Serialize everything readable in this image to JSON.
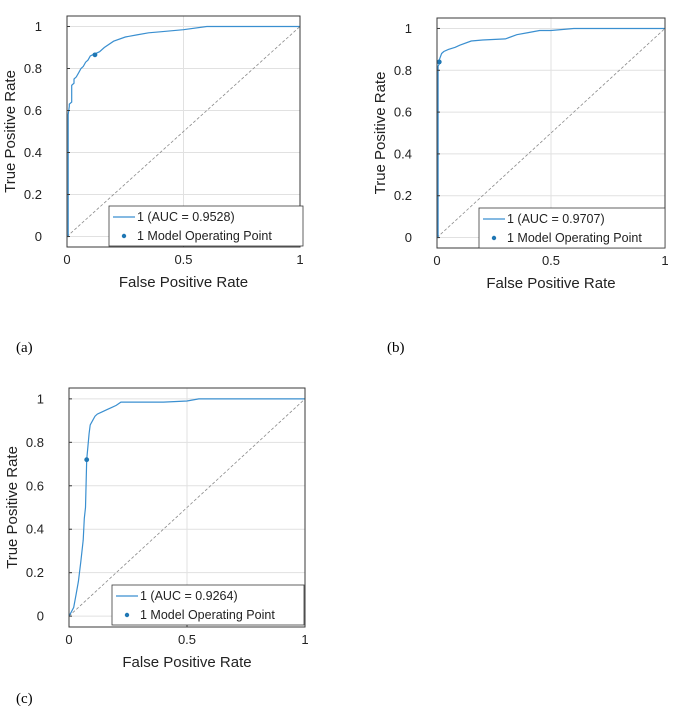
{
  "chart_data": [
    {
      "type": "line",
      "panel": "(a)",
      "xlabel": "False Positive Rate",
      "ylabel": "True Positive Rate",
      "xlim": [
        0,
        1
      ],
      "ylim": [
        -0.05,
        1.05
      ],
      "xticks": [
        0,
        0.5,
        1
      ],
      "xtick_labels": [
        "0",
        "0.5",
        "1"
      ],
      "yticks": [
        0,
        0.2,
        0.4,
        0.6,
        0.8,
        1
      ],
      "ytick_labels": [
        "0",
        "0.2",
        "0.4",
        "0.6",
        "0.8",
        "1"
      ],
      "grid": true,
      "legend_position": "bottom-right",
      "series": [
        {
          "name": "1 (AUC = 0.9528)",
          "color": "#3a8fd0",
          "x": [
            0,
            0.005,
            0.005,
            0.01,
            0.01,
            0.02,
            0.02,
            0.03,
            0.03,
            0.04,
            0.05,
            0.06,
            0.07,
            0.08,
            0.09,
            0.1,
            0.11,
            0.12,
            0.14,
            0.16,
            0.2,
            0.25,
            0.3,
            0.35,
            0.4,
            0.5,
            0.6,
            1
          ],
          "y": [
            0,
            0,
            0.58,
            0.62,
            0.63,
            0.64,
            0.72,
            0.73,
            0.75,
            0.76,
            0.78,
            0.8,
            0.81,
            0.83,
            0.84,
            0.86,
            0.865,
            0.87,
            0.88,
            0.9,
            0.93,
            0.95,
            0.96,
            0.97,
            0.975,
            0.985,
            1,
            1
          ]
        }
      ],
      "operating_point": {
        "name": "1 Model Operating Point",
        "x": 0.12,
        "y": 0.865,
        "color": "#1f77b4"
      },
      "diagonal": true
    },
    {
      "type": "line",
      "panel": "(b)",
      "xlabel": "False Positive Rate",
      "ylabel": "True Positive Rate",
      "xlim": [
        0,
        1
      ],
      "ylim": [
        -0.05,
        1.05
      ],
      "xticks": [
        0,
        0.5,
        1
      ],
      "xtick_labels": [
        "0",
        "0.5",
        "1"
      ],
      "yticks": [
        0,
        0.2,
        0.4,
        0.6,
        0.8,
        1
      ],
      "ytick_labels": [
        "0",
        "0.2",
        "0.4",
        "0.6",
        "0.8",
        "1"
      ],
      "grid": true,
      "legend_position": "bottom-right",
      "series": [
        {
          "name": "1 (AUC = 0.9707)",
          "color": "#3a8fd0",
          "x": [
            0,
            0.005,
            0.005,
            0.01,
            0.01,
            0.02,
            0.03,
            0.05,
            0.08,
            0.1,
            0.15,
            0.2,
            0.3,
            0.35,
            0.4,
            0.45,
            0.5,
            0.55,
            0.6,
            1
          ],
          "y": [
            0,
            0,
            0.82,
            0.83,
            0.85,
            0.88,
            0.89,
            0.9,
            0.91,
            0.92,
            0.94,
            0.945,
            0.95,
            0.97,
            0.98,
            0.99,
            0.99,
            0.995,
            1,
            1
          ]
        }
      ],
      "operating_point": {
        "name": "1 Model Operating Point",
        "x": 0.01,
        "y": 0.84,
        "color": "#1f77b4"
      },
      "diagonal": true
    },
    {
      "type": "line",
      "panel": "(c)",
      "xlabel": "False Positive Rate",
      "ylabel": "True Positive Rate",
      "xlim": [
        0,
        1
      ],
      "ylim": [
        -0.05,
        1.05
      ],
      "xticks": [
        0,
        0.5,
        1
      ],
      "xtick_labels": [
        "0",
        "0.5",
        "1"
      ],
      "yticks": [
        0,
        0.2,
        0.4,
        0.6,
        0.8,
        1
      ],
      "ytick_labels": [
        "0",
        "0.2",
        "0.4",
        "0.6",
        "0.8",
        "1"
      ],
      "grid": true,
      "legend_position": "bottom-right",
      "series": [
        {
          "name": "1 (AUC = 0.9264)",
          "color": "#3a8fd0",
          "x": [
            0,
            0.01,
            0.02,
            0.03,
            0.04,
            0.05,
            0.06,
            0.065,
            0.07,
            0.075,
            0.08,
            0.085,
            0.09,
            0.1,
            0.11,
            0.12,
            0.14,
            0.16,
            0.18,
            0.2,
            0.22,
            0.25,
            0.3,
            0.4,
            0.5,
            0.55,
            1
          ],
          "y": [
            0,
            0.02,
            0.04,
            0.1,
            0.16,
            0.25,
            0.35,
            0.45,
            0.5,
            0.72,
            0.78,
            0.84,
            0.88,
            0.9,
            0.92,
            0.93,
            0.94,
            0.95,
            0.96,
            0.97,
            0.985,
            0.985,
            0.985,
            0.985,
            0.99,
            1,
            1
          ]
        }
      ],
      "operating_point": {
        "name": "1 Model Operating Point",
        "x": 0.075,
        "y": 0.72,
        "color": "#1f77b4"
      },
      "diagonal": true
    }
  ],
  "panels": [
    {
      "label": "(a)"
    },
    {
      "label": "(b)"
    },
    {
      "label": "(c)"
    }
  ]
}
